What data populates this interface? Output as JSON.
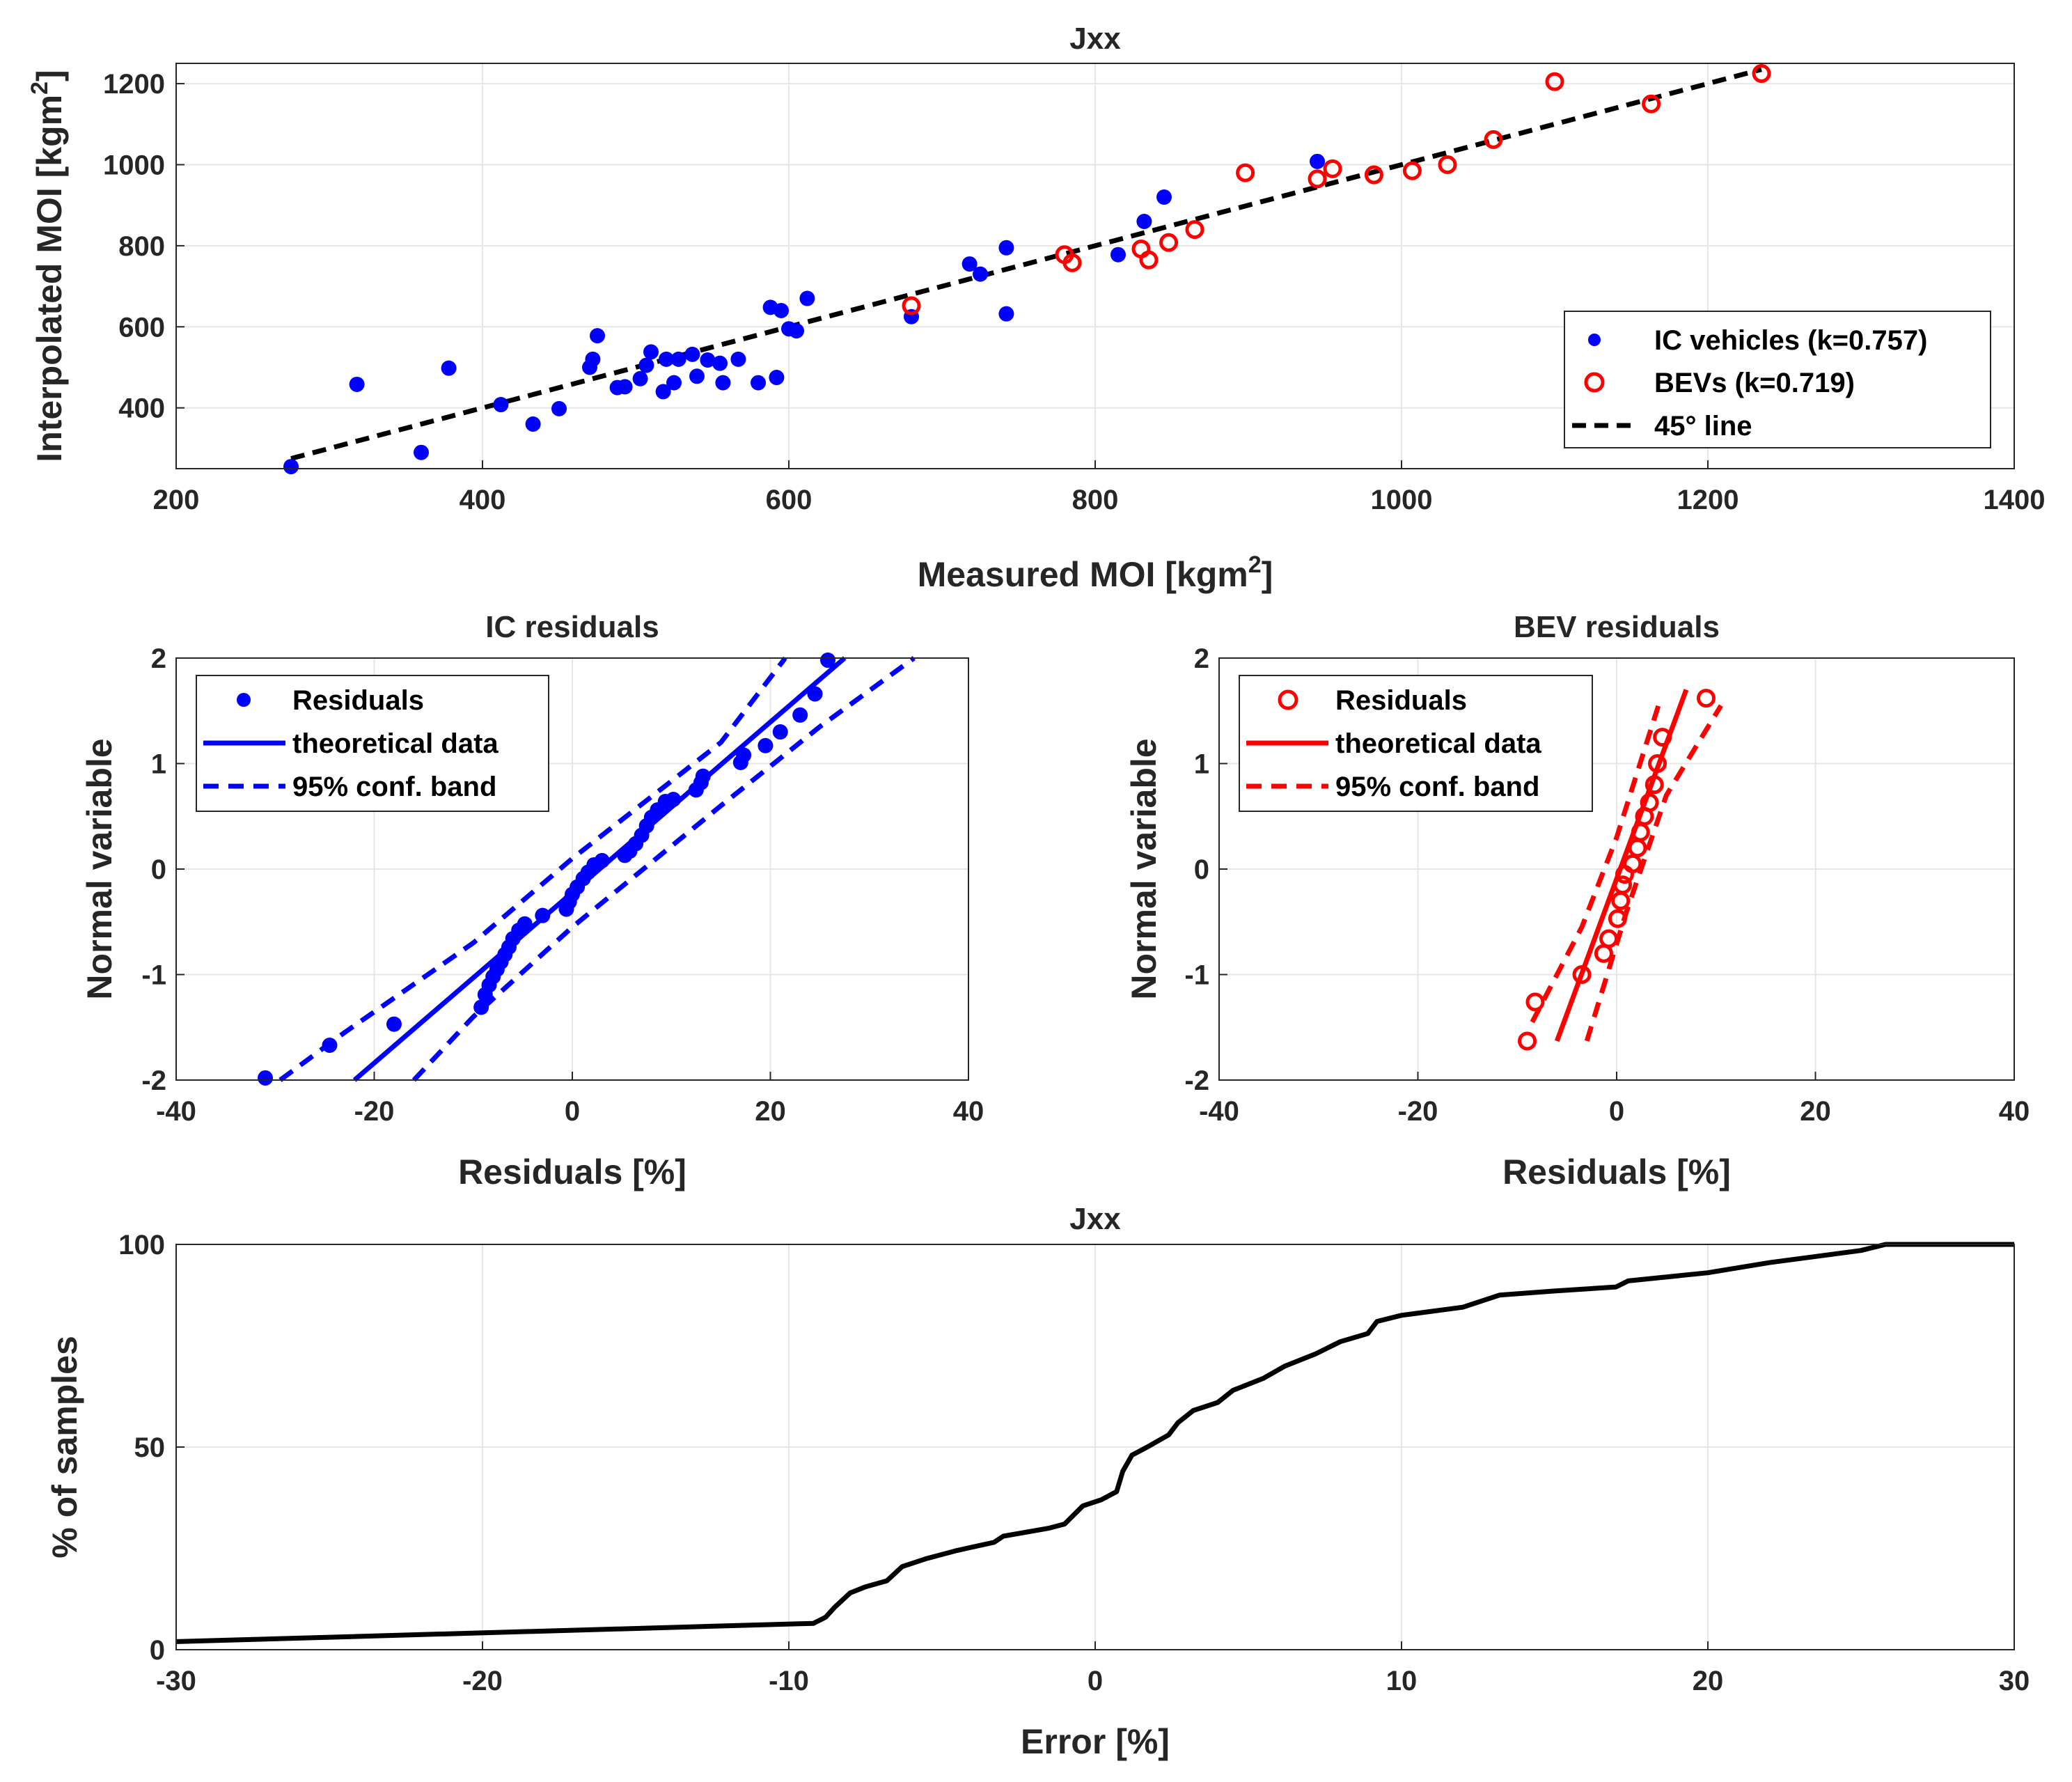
{
  "chart_data": [
    {
      "id": "scatter",
      "type": "scatter",
      "title": "Jxx",
      "xlabel": "Measured MOI [kgm",
      "xlabel_sup": "2",
      "xlabel_suffix": "]",
      "ylabel": "Interpolated MOI [kgm",
      "ylabel_sup": "2",
      "ylabel_suffix": "]",
      "xlim": [
        200,
        1400
      ],
      "ylim": [
        250,
        1250
      ],
      "xticks": [
        200,
        400,
        600,
        800,
        1000,
        1200,
        1400
      ],
      "yticks": [
        400,
        600,
        800,
        1000,
        1200
      ],
      "legend_position": "bottom-right",
      "series": [
        {
          "name": "IC vehicles (k=0.757)",
          "marker": "filled-circle",
          "color": "#0000ff",
          "points": [
            [
              275,
              255
            ],
            [
              318,
              458
            ],
            [
              360,
              290
            ],
            [
              378,
              498
            ],
            [
              412,
              408
            ],
            [
              433,
              360
            ],
            [
              450,
              398
            ],
            [
              470,
              500
            ],
            [
              472,
              520
            ],
            [
              475,
              578
            ],
            [
              488,
              450
            ],
            [
              493,
              452
            ],
            [
              503,
              472
            ],
            [
              507,
              505
            ],
            [
              510,
              538
            ],
            [
              518,
              440
            ],
            [
              520,
              520
            ],
            [
              525,
              462
            ],
            [
              528,
              520
            ],
            [
              537,
              532
            ],
            [
              540,
              478
            ],
            [
              547,
              518
            ],
            [
              555,
              510
            ],
            [
              557,
              462
            ],
            [
              567,
              520
            ],
            [
              580,
              462
            ],
            [
              588,
              648
            ],
            [
              592,
              475
            ],
            [
              595,
              640
            ],
            [
              600,
              595
            ],
            [
              605,
              590
            ],
            [
              612,
              670
            ],
            [
              680,
              625
            ],
            [
              718,
              755
            ],
            [
              725,
              730
            ],
            [
              742,
              795
            ],
            [
              742,
              632
            ],
            [
              815,
              778
            ],
            [
              832,
              860
            ],
            [
              845,
              920
            ],
            [
              945,
              1008
            ]
          ]
        },
        {
          "name": "BEVs (k=0.719)",
          "marker": "open-circle",
          "color": "#ff0000",
          "points": [
            [
              680,
              652
            ],
            [
              780,
              778
            ],
            [
              785,
              758
            ],
            [
              830,
              792
            ],
            [
              835,
              765
            ],
            [
              848,
              808
            ],
            [
              865,
              840
            ],
            [
              898,
              980
            ],
            [
              945,
              965
            ],
            [
              955,
              990
            ],
            [
              982,
              975
            ],
            [
              1007,
              985
            ],
            [
              1030,
              1000
            ],
            [
              1060,
              1062
            ],
            [
              1100,
              1205
            ],
            [
              1163,
              1150
            ],
            [
              1235,
              1225
            ]
          ]
        },
        {
          "name": "45° line",
          "style": "dashed-line",
          "color": "#000000",
          "points": [
            [
              275,
              275
            ],
            [
              1235,
              1235
            ]
          ]
        }
      ]
    },
    {
      "id": "ic_residuals",
      "type": "scatter",
      "title": "IC residuals",
      "xlabel": "Residuals [%]",
      "ylabel": "Normal variable",
      "xlim": [
        -40,
        40
      ],
      "ylim": [
        -2,
        2
      ],
      "xticks": [
        -40,
        -20,
        0,
        20,
        40
      ],
      "yticks": [
        -2,
        -1,
        0,
        1,
        2
      ],
      "legend_position": "top-left",
      "color": "#0000ff",
      "legend": [
        "Residuals",
        "theoretical data",
        "95% conf. band"
      ],
      "residuals": [
        [
          -31,
          -1.98
        ],
        [
          -24.5,
          -1.67
        ],
        [
          -18,
          -1.47
        ],
        [
          -9.2,
          -1.31
        ],
        [
          -8.8,
          -1.19
        ],
        [
          -8.4,
          -1.1
        ],
        [
          -8,
          -1.02
        ],
        [
          -7.6,
          -0.95
        ],
        [
          -7.2,
          -0.88
        ],
        [
          -6.8,
          -0.81
        ],
        [
          -6.4,
          -0.74
        ],
        [
          -6,
          -0.66
        ],
        [
          -5.4,
          -0.58
        ],
        [
          -4.8,
          -0.52
        ],
        [
          -3,
          -0.44
        ],
        [
          -0.6,
          -0.38
        ],
        [
          -0.3,
          -0.31
        ],
        [
          0,
          -0.24
        ],
        [
          0.5,
          -0.17
        ],
        [
          1.1,
          -0.09
        ],
        [
          1.6,
          -0.03
        ],
        [
          2.2,
          0.04
        ],
        [
          3,
          0.08
        ],
        [
          5.3,
          0.13
        ],
        [
          5.8,
          0.17
        ],
        [
          6.4,
          0.24
        ],
        [
          7,
          0.32
        ],
        [
          7.5,
          0.41
        ],
        [
          8,
          0.49
        ],
        [
          8.6,
          0.56
        ],
        [
          9.4,
          0.64
        ],
        [
          10.2,
          0.66
        ],
        [
          12.5,
          0.75
        ],
        [
          13,
          0.82
        ],
        [
          13.2,
          0.88
        ],
        [
          17,
          1.01
        ],
        [
          17.3,
          1.08
        ],
        [
          19.5,
          1.17
        ],
        [
          21,
          1.3
        ],
        [
          23,
          1.46
        ],
        [
          24.5,
          1.66
        ],
        [
          25.8,
          1.98
        ]
      ],
      "theory_line": [
        [
          -22,
          -2
        ],
        [
          27.5,
          2
        ]
      ],
      "band_low": [
        [
          -16,
          -2
        ],
        [
          -10,
          -1.4
        ],
        [
          0,
          -0.55
        ],
        [
          15,
          0.6
        ],
        [
          25,
          1.35
        ],
        [
          34.5,
          2
        ]
      ],
      "band_high": [
        [
          -29.5,
          -2
        ],
        [
          -23,
          -1.55
        ],
        [
          -10,
          -0.7
        ],
        [
          0,
          0.1
        ],
        [
          15,
          1.2
        ],
        [
          21.5,
          2
        ]
      ]
    },
    {
      "id": "bev_residuals",
      "type": "scatter",
      "title": "BEV residuals",
      "xlabel": "Residuals [%]",
      "ylabel": "Normal variable",
      "xlim": [
        -40,
        40
      ],
      "ylim": [
        -2,
        2
      ],
      "xticks": [
        -40,
        -20,
        0,
        20,
        40
      ],
      "yticks": [
        -2,
        -1,
        0,
        1,
        2
      ],
      "legend_position": "top-left",
      "color": "#ff0000",
      "legend": [
        "Residuals",
        "theoretical data",
        "95% conf. band"
      ],
      "residuals": [
        [
          -9,
          -1.63
        ],
        [
          -8.2,
          -1.26
        ],
        [
          -3.5,
          -1
        ],
        [
          -1.3,
          -0.8
        ],
        [
          -0.8,
          -0.66
        ],
        [
          0.1,
          -0.47
        ],
        [
          0.4,
          -0.3
        ],
        [
          0.6,
          -0.15
        ],
        [
          0.8,
          -0.05
        ],
        [
          1.6,
          0.05
        ],
        [
          2.1,
          0.2
        ],
        [
          2.4,
          0.35
        ],
        [
          2.8,
          0.5
        ],
        [
          3.3,
          0.63
        ],
        [
          3.8,
          0.8
        ],
        [
          4.1,
          1
        ],
        [
          4.6,
          1.25
        ],
        [
          9,
          1.62
        ]
      ],
      "theory_line": [
        [
          -6,
          -1.63
        ],
        [
          7,
          1.7
        ]
      ],
      "band_low": [
        [
          -3,
          -1.63
        ],
        [
          1,
          -0.4
        ],
        [
          5,
          0.7
        ],
        [
          10.5,
          1.55
        ]
      ],
      "band_high": [
        [
          -8.5,
          -1.45
        ],
        [
          -3.5,
          -0.55
        ],
        [
          0,
          0.3
        ],
        [
          4.2,
          1.55
        ]
      ]
    },
    {
      "id": "cdf",
      "type": "line",
      "title": "Jxx",
      "xlabel": "Error [%]",
      "ylabel": "% of samples",
      "xlim": [
        -30,
        30
      ],
      "ylim": [
        0,
        100
      ],
      "xticks": [
        -30,
        -20,
        -10,
        0,
        10,
        20,
        30
      ],
      "yticks": [
        0,
        50,
        100
      ],
      "color": "#000000",
      "points": [
        [
          -30,
          2
        ],
        [
          -9.2,
          6.5
        ],
        [
          -8.8,
          8
        ],
        [
          -8.5,
          10.5
        ],
        [
          -8,
          14
        ],
        [
          -7.5,
          15.5
        ],
        [
          -6.8,
          17
        ],
        [
          -6.3,
          20.5
        ],
        [
          -5.5,
          22.5
        ],
        [
          -4.5,
          24.5
        ],
        [
          -3.3,
          26.5
        ],
        [
          -3,
          28
        ],
        [
          -1.5,
          30
        ],
        [
          -1,
          31
        ],
        [
          -0.4,
          35.5
        ],
        [
          0.2,
          37
        ],
        [
          0.7,
          39
        ],
        [
          0.9,
          44
        ],
        [
          1.2,
          48
        ],
        [
          1.7,
          50
        ],
        [
          2.4,
          53
        ],
        [
          2.7,
          56
        ],
        [
          3.2,
          59
        ],
        [
          4,
          61
        ],
        [
          4.5,
          64
        ],
        [
          5.5,
          67
        ],
        [
          6.2,
          70
        ],
        [
          7.2,
          73
        ],
        [
          8,
          76
        ],
        [
          8.9,
          78
        ],
        [
          9.2,
          81
        ],
        [
          10,
          82.5
        ],
        [
          12,
          84.5
        ],
        [
          13.2,
          87.5
        ],
        [
          15,
          88.5
        ],
        [
          17,
          89.5
        ],
        [
          17.4,
          91
        ],
        [
          20,
          93
        ],
        [
          22,
          95.5
        ],
        [
          25,
          98.5
        ],
        [
          25.8,
          100
        ],
        [
          30,
          100
        ]
      ]
    }
  ]
}
